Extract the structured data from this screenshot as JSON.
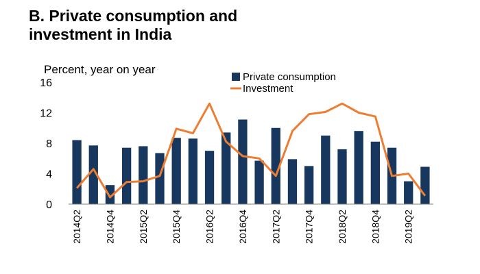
{
  "chart_data": {
    "type": "bar",
    "title_line1": "B. Private consumption and",
    "title_line2": "investment in India",
    "ylabel": "Percent, year on year",
    "ylim": [
      0,
      16
    ],
    "yticks": [
      "0",
      "4",
      "8",
      "12",
      "16"
    ],
    "categories": [
      "2014Q2",
      "2014Q3",
      "2014Q4",
      "2015Q1",
      "2015Q2",
      "2015Q3",
      "2015Q4",
      "2016Q1",
      "2016Q2",
      "2016Q3",
      "2016Q4",
      "2017Q1",
      "2017Q2",
      "2017Q3",
      "2017Q4",
      "2018Q1",
      "2018Q2",
      "2018Q3",
      "2018Q4",
      "2019Q1",
      "2019Q2",
      "2019Q3"
    ],
    "xtick_labels": [
      "2014Q2",
      "2014Q4",
      "2015Q2",
      "2015Q4",
      "2016Q2",
      "2016Q4",
      "2017Q2",
      "2017Q4",
      "2018Q2",
      "2018Q4",
      "2019Q2"
    ],
    "grid": false,
    "legend_position": "top-right",
    "series": [
      {
        "name": "Private consumption",
        "type": "bar",
        "color": "#17375e",
        "values": [
          8.4,
          7.7,
          2.5,
          7.4,
          7.6,
          6.7,
          8.7,
          8.6,
          7.0,
          9.4,
          11.1,
          5.7,
          10.0,
          5.9,
          5.0,
          9.0,
          7.2,
          9.6,
          8.2,
          7.4,
          3.0,
          4.9
        ]
      },
      {
        "name": "Investment",
        "type": "line",
        "color": "#ed7d31",
        "values": [
          2.1,
          4.6,
          0.9,
          2.9,
          3.0,
          3.7,
          9.9,
          9.3,
          13.2,
          8.2,
          6.3,
          6.0,
          3.7,
          9.6,
          11.8,
          12.1,
          13.2,
          12.0,
          11.5,
          3.7,
          4.0,
          1.1
        ]
      }
    ]
  }
}
